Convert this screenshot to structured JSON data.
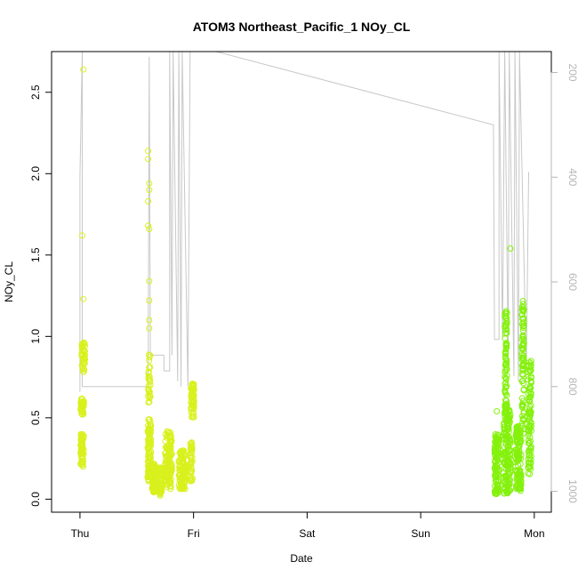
{
  "chart_data": {
    "type": "scatter",
    "title": "ATOM3 Northeast_Pacific_1 NOy_CL",
    "xlabel": "Date",
    "ylabel": "NOy_CL",
    "x_ticks": [
      "Thu",
      "Fri",
      "Sat",
      "Sun",
      "Mon"
    ],
    "x_range_days": [
      -0.25,
      4.15
    ],
    "y_ticks": [
      "0.0",
      "0.5",
      "1.0",
      "1.5",
      "2.0",
      "2.5"
    ],
    "ylim": [
      -0.08,
      2.75
    ],
    "right_axis": {
      "label": "",
      "ticks": [
        "200",
        "400",
        "600",
        "800",
        "1000"
      ],
      "range": [
        1040,
        160
      ],
      "reversed": true,
      "color": "#b5b5b5"
    },
    "grid": false,
    "legend": "none",
    "colors": {
      "early": "#d8f11d",
      "late": "#84f10d",
      "altitude_line": "#c8c8c8"
    },
    "series": [
      {
        "role": "points",
        "marker": "open-circle",
        "clusters": [
          {
            "day": 0.02,
            "days": 0.03,
            "lo": 0.52,
            "hi": 0.62,
            "n": 40
          },
          {
            "day": 0.02,
            "days": 0.03,
            "lo": 0.2,
            "hi": 0.4,
            "n": 55
          },
          {
            "day": 0.03,
            "days": 0.03,
            "lo": 0.78,
            "hi": 0.98,
            "n": 45
          },
          {
            "day": 0.61,
            "days": 0.02,
            "lo": 0.55,
            "hi": 0.9,
            "n": 30
          },
          {
            "day": 0.61,
            "days": 0.03,
            "lo": 0.1,
            "hi": 0.5,
            "n": 110
          },
          {
            "day": 0.65,
            "days": 0.03,
            "lo": 0.04,
            "hi": 0.22,
            "n": 90
          },
          {
            "day": 0.71,
            "days": 0.02,
            "lo": 0.02,
            "hi": 0.2,
            "n": 70
          },
          {
            "day": 0.78,
            "days": 0.06,
            "lo": 0.06,
            "hi": 0.42,
            "n": 130
          },
          {
            "day": 0.9,
            "days": 0.06,
            "lo": 0.06,
            "hi": 0.3,
            "n": 120
          },
          {
            "day": 0.99,
            "days": 0.03,
            "lo": 0.5,
            "hi": 0.72,
            "n": 60
          },
          {
            "day": 0.98,
            "days": 0.02,
            "lo": 0.1,
            "hi": 0.35,
            "n": 40
          },
          {
            "day": 3.67,
            "days": 0.04,
            "lo": 0.03,
            "hi": 0.4,
            "n": 110
          },
          {
            "day": 3.75,
            "days": 0.02,
            "lo": 0.55,
            "hi": 1.18,
            "n": 80
          },
          {
            "day": 3.76,
            "days": 0.06,
            "lo": 0.03,
            "hi": 0.55,
            "n": 170
          },
          {
            "day": 3.86,
            "days": 0.05,
            "lo": 0.05,
            "hi": 0.45,
            "n": 140
          },
          {
            "day": 3.9,
            "days": 0.02,
            "lo": 0.4,
            "hi": 1.22,
            "n": 80
          },
          {
            "day": 3.96,
            "days": 0.03,
            "lo": 0.15,
            "hi": 0.85,
            "n": 100
          }
        ],
        "isolated": [
          {
            "day": 0.03,
            "value": 2.64
          },
          {
            "day": 0.02,
            "value": 1.62
          },
          {
            "day": 0.03,
            "value": 1.23
          },
          {
            "day": 0.6,
            "value": 2.14
          },
          {
            "day": 0.6,
            "value": 2.09
          },
          {
            "day": 0.61,
            "value": 1.94
          },
          {
            "day": 0.61,
            "value": 1.9
          },
          {
            "day": 0.6,
            "value": 1.83
          },
          {
            "day": 0.6,
            "value": 1.68
          },
          {
            "day": 0.61,
            "value": 1.66
          },
          {
            "day": 0.61,
            "value": 1.34
          },
          {
            "day": 0.61,
            "value": 1.22
          },
          {
            "day": 0.61,
            "value": 1.1
          },
          {
            "day": 0.61,
            "value": 1.05
          },
          {
            "day": 3.79,
            "value": 1.54
          },
          {
            "day": 3.67,
            "value": 0.54
          }
        ]
      },
      {
        "role": "altitude line (right axis)",
        "points": [
          [
            0.0,
            810
          ],
          [
            0.0,
            400
          ],
          [
            0.02,
            160
          ],
          [
            0.02,
            800
          ],
          [
            0.56,
            800
          ],
          [
            0.6,
            800
          ],
          [
            0.61,
            170
          ],
          [
            0.62,
            740
          ],
          [
            0.74,
            740
          ],
          [
            0.74,
            770
          ],
          [
            0.79,
            770
          ],
          [
            0.79,
            160
          ],
          [
            0.81,
            740
          ],
          [
            0.82,
            160
          ],
          [
            0.86,
            790
          ],
          [
            0.87,
            160
          ],
          [
            0.89,
            800
          ],
          [
            0.9,
            160
          ],
          [
            0.95,
            800
          ],
          [
            0.97,
            160
          ],
          [
            1.0,
            160
          ],
          [
            1.2,
            160
          ],
          [
            3.64,
            300
          ],
          [
            3.65,
            710
          ],
          [
            3.69,
            710
          ],
          [
            3.69,
            160
          ],
          [
            3.72,
            710
          ],
          [
            3.74,
            160
          ],
          [
            3.77,
            750
          ],
          [
            3.78,
            160
          ],
          [
            3.82,
            780
          ],
          [
            3.83,
            160
          ],
          [
            3.86,
            790
          ],
          [
            3.87,
            160
          ],
          [
            3.93,
            770
          ],
          [
            3.95,
            390
          ]
        ]
      }
    ]
  }
}
